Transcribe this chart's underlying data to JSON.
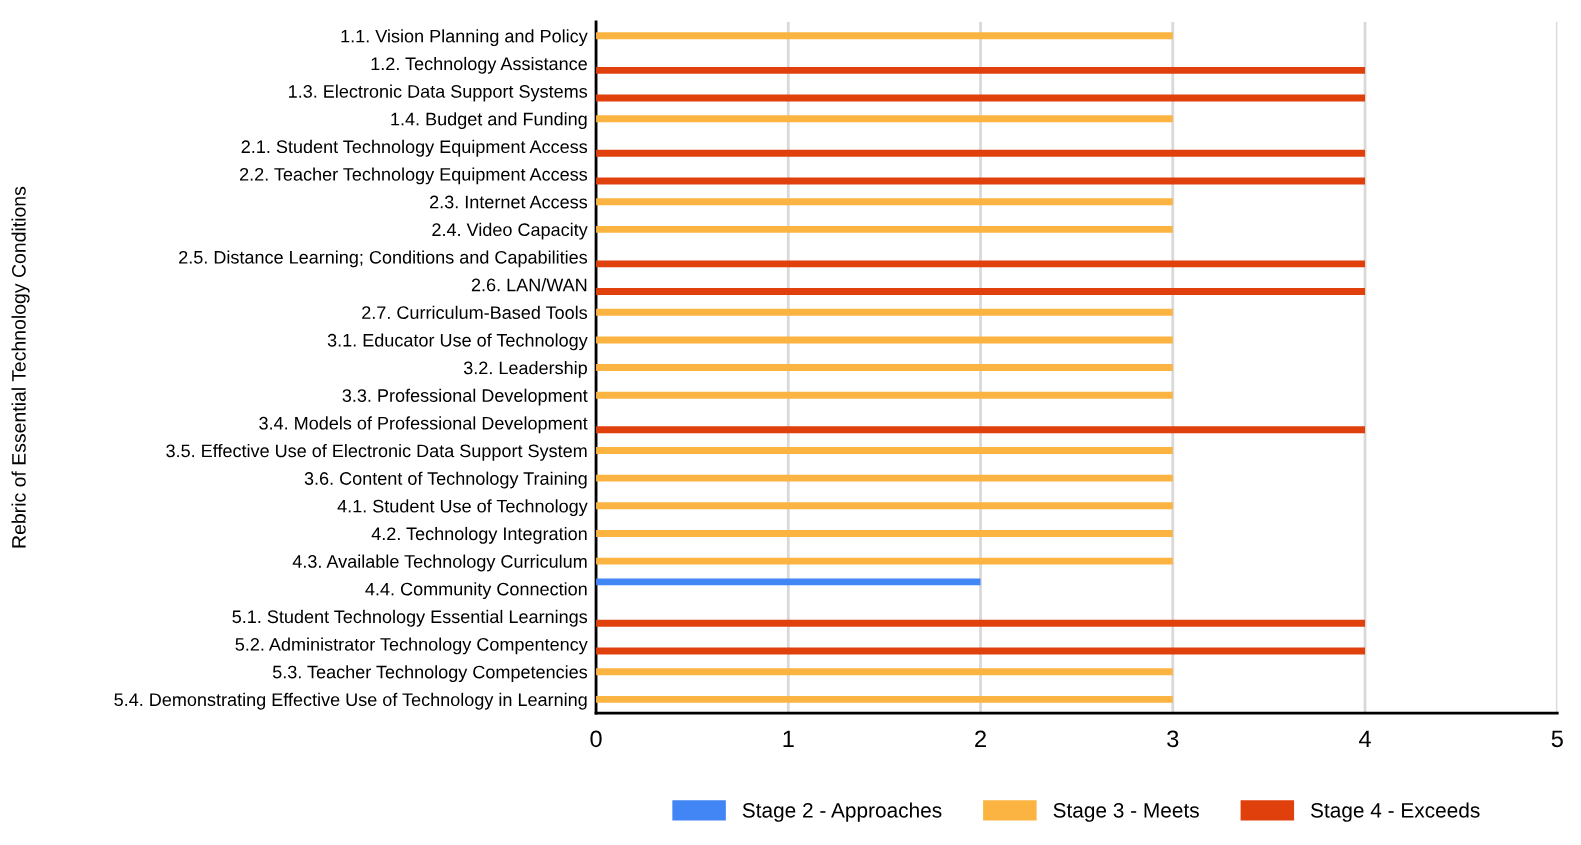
{
  "chart_data": {
    "type": "bar",
    "orientation": "horizontal",
    "ylabel": "Rebric of Essential Technology Conditions",
    "categories": [
      "1.1. Vision Planning and Policy",
      "1.2. Technology Assistance",
      "1.3. Electronic Data Support Systems",
      "1.4. Budget and Funding",
      "2.1. Student Technology Equipment Access",
      "2.2. Teacher Technology Equipment Access",
      "2.3. Internet Access",
      "2.4. Video Capacity",
      "2.5. Distance Learning; Conditions and Capabilities",
      "2.6. LAN/WAN",
      "2.7. Curriculum-Based Tools",
      "3.1. Educator Use of Technology",
      "3.2. Leadership",
      "3.3. Professional Development",
      "3.4. Models of Professional Development",
      "3.5. Effective Use of Electronic Data Support System",
      "3.6. Content of Technology Training",
      "4.1. Student Use of Technology",
      "4.2. Technology Integration",
      "4.3. Available Technology Curriculum",
      "4.4. Community Connection",
      "5.1. Student Technology Essential Learnings",
      "5.2. Administrator Technology Compentency",
      "5.3. Teacher Technology Competencies",
      "5.4. Demonstrating Effective Use of Technology in Learning"
    ],
    "series": [
      {
        "name": "Stage 2 - Approaches",
        "color": "#4285f4",
        "values": [
          null,
          null,
          null,
          null,
          null,
          null,
          null,
          null,
          null,
          null,
          null,
          null,
          null,
          null,
          null,
          null,
          null,
          null,
          null,
          null,
          2,
          null,
          null,
          null,
          null
        ]
      },
      {
        "name": "Stage 3 - Meets",
        "color": "#fbb441",
        "values": [
          3,
          null,
          null,
          3,
          null,
          null,
          3,
          3,
          null,
          null,
          3,
          3,
          3,
          3,
          null,
          3,
          3,
          3,
          3,
          3,
          null,
          null,
          null,
          3,
          3
        ]
      },
      {
        "name": "Stage 4 - Exceeds",
        "color": "#e0400c",
        "values": [
          null,
          4,
          4,
          null,
          4,
          4,
          null,
          null,
          4,
          4,
          null,
          null,
          null,
          null,
          4,
          null,
          null,
          null,
          null,
          null,
          null,
          4,
          4,
          null,
          null
        ]
      }
    ],
    "xlim": [
      0,
      5
    ],
    "xticks": [
      0,
      1,
      2,
      3,
      4,
      5
    ],
    "grid": "x",
    "legend": "bottom"
  }
}
